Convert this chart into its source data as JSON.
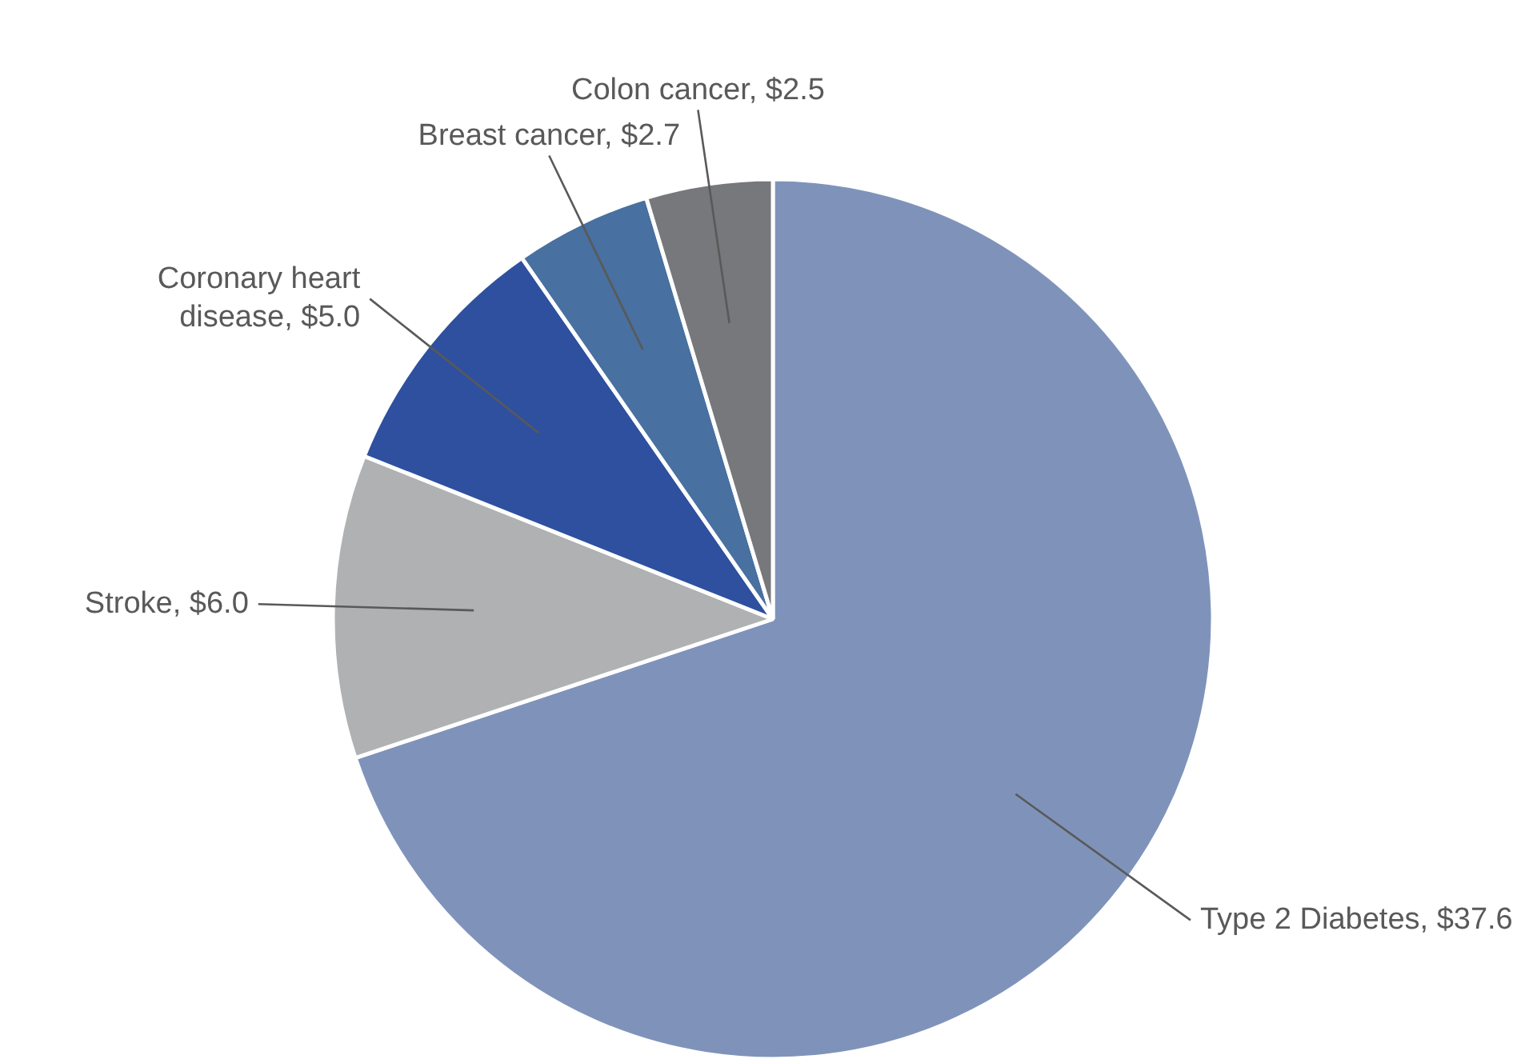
{
  "chart_data": {
    "type": "pie",
    "categories": [
      "Type 2 Diabetes",
      "Stroke",
      "Coronary heart disease",
      "Breast cancer",
      "Colon cancer"
    ],
    "values": [
      37.6,
      6.0,
      5.0,
      2.7,
      2.5
    ],
    "value_labels": [
      "$37.6",
      "$6.0",
      "$5.0",
      "$2.7",
      "$2.5"
    ],
    "colors": [
      "#7f93ba",
      "#b0b1b3",
      "#2e509f",
      "#4870a0",
      "#77787b"
    ],
    "legend": false
  }
}
